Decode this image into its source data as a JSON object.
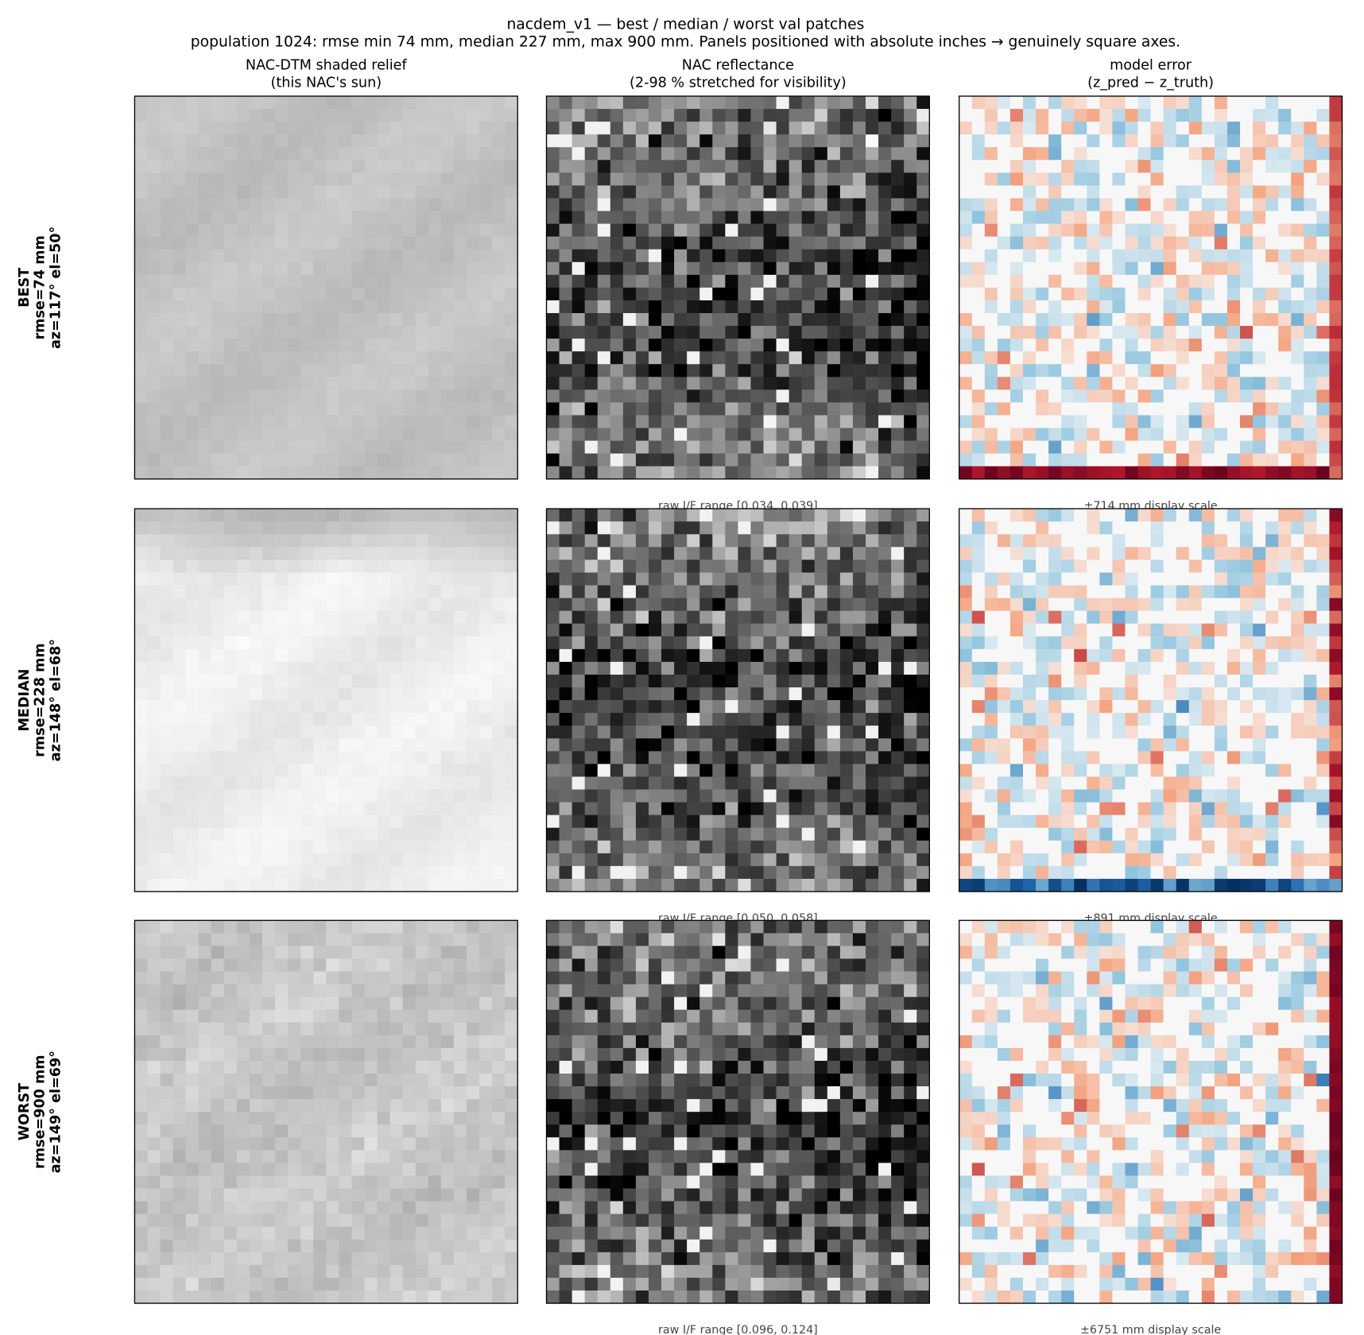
{
  "header": {
    "title": "nacdem_v1 — best / median / worst val patches",
    "subtitle": "population 1024: rmse min 74 mm, median 227 mm, max 900 mm. Panels positioned with absolute inches → genuinely square axes."
  },
  "columns": [
    {
      "title": [
        "NAC-DTM shaded relief",
        "(this NAC's sun)"
      ]
    },
    {
      "title": [
        "NAC reflectance",
        "(2-98 % stretched for visibility)"
      ]
    },
    {
      "title": [
        "model error",
        "(z_pred − z_truth)"
      ]
    }
  ],
  "rows": [
    {
      "label": [
        "BEST",
        "rmse=74 mm",
        "az=117°  el=50°"
      ],
      "reflectance_note": "raw I/F range [0.034, 0.039]",
      "error_note": "±714 mm display scale"
    },
    {
      "label": [
        "MEDIAN",
        "rmse=228 mm",
        "az=148°  el=68°"
      ],
      "reflectance_note": "raw I/F range [0.050, 0.058]",
      "error_note": "±891 mm display scale"
    },
    {
      "label": [
        "WORST",
        "rmse=900 mm",
        "az=149°  el=69°"
      ],
      "reflectance_note": "raw I/F range [0.096, 0.124]",
      "error_note": "±6751 mm display scale"
    }
  ]
}
